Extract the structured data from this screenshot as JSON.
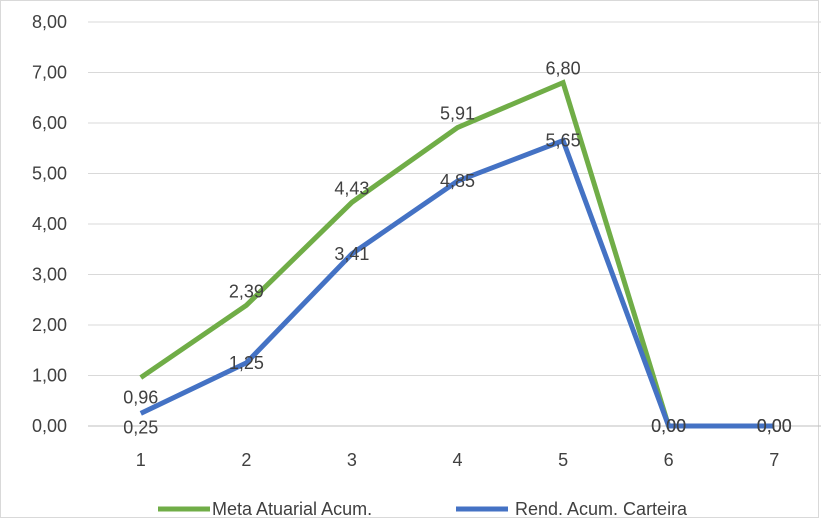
{
  "chart_data": {
    "type": "line",
    "categories": [
      "1",
      "2",
      "3",
      "4",
      "5",
      "6",
      "7"
    ],
    "series": [
      {
        "name": "Meta Atuarial Acum.",
        "color": "#70ad47",
        "values": [
          0.96,
          2.39,
          4.43,
          5.91,
          6.8,
          0.0,
          0.0
        ],
        "labels": [
          "0,96",
          "2,39",
          "4,43",
          "5,91",
          "6,80",
          "0,00",
          "0,00"
        ]
      },
      {
        "name": "Rend. Acum. Carteira",
        "color": "#4472c4",
        "values": [
          0.25,
          1.25,
          3.41,
          4.85,
          5.65,
          0.0,
          0.0
        ],
        "labels": [
          "0,25",
          "1,25",
          "3,41",
          "4,85",
          "5,65",
          "0,00",
          "0,00"
        ]
      }
    ],
    "ylim": [
      0,
      8
    ],
    "yticks": [
      "0,00",
      "1,00",
      "2,00",
      "3,00",
      "4,00",
      "5,00",
      "6,00",
      "7,00",
      "8,00"
    ],
    "grid": true,
    "legend_position": "bottom",
    "title": "",
    "xlabel": "",
    "ylabel": ""
  }
}
